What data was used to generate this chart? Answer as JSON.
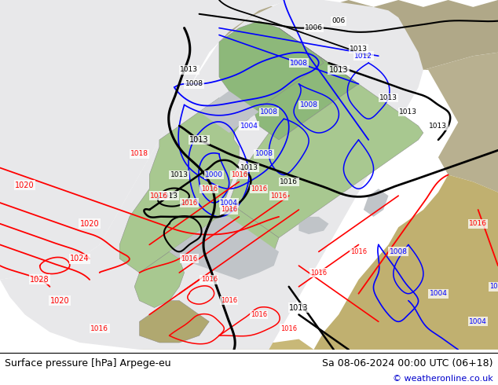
{
  "title_left": "Surface pressure [hPa] Arpege-eu",
  "title_right": "Sa 08-06-2024 00:00 UTC (06+18)",
  "copyright": "© weatheronline.co.uk",
  "fig_width": 6.34,
  "fig_height": 4.9,
  "dpi": 100,
  "title_fontsize": 9,
  "copyright_fontsize": 8,
  "copyright_color": "#0000cc",
  "ocean_gray": "#b8b8b8",
  "domain_white": "#e8e8ea",
  "land_green": "#8db87a",
  "land_green2": "#a8c890",
  "land_beige": "#c8bc8c",
  "land_tan": "#b8ad7a",
  "sea_gray": "#a0a8b0",
  "footer_bg": "#ffffff"
}
